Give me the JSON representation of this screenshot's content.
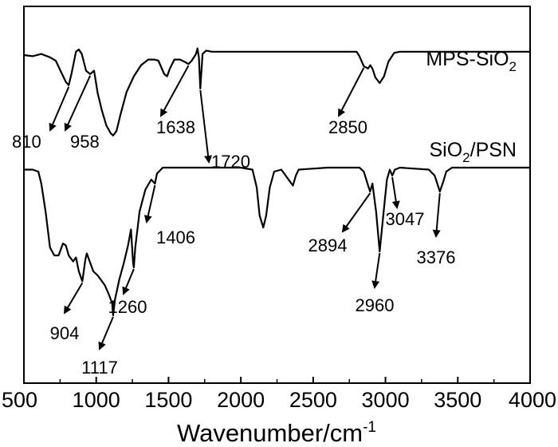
{
  "chart_data": {
    "type": "line",
    "xlabel": "Wavenumber/cm",
    "xlabel_sup": "-1",
    "xlim": [
      500,
      4000
    ],
    "xticks": [
      500,
      1000,
      1500,
      2000,
      2500,
      3000,
      3500,
      4000
    ],
    "y_axis_visible": false,
    "series": [
      {
        "name_parts": [
          "MPS-SiO",
          "2",
          ""
        ],
        "offset": 0,
        "points": [
          [
            500,
            0.9
          ],
          [
            560,
            0.89
          ],
          [
            620,
            0.91
          ],
          [
            680,
            0.88
          ],
          [
            720,
            0.85
          ],
          [
            760,
            0.74
          ],
          [
            790,
            0.66
          ],
          [
            810,
            0.63
          ],
          [
            830,
            0.74
          ],
          [
            860,
            0.93
          ],
          [
            880,
            0.95
          ],
          [
            900,
            0.91
          ],
          [
            930,
            0.76
          ],
          [
            958,
            0.73
          ],
          [
            985,
            0.76
          ],
          [
            1010,
            0.56
          ],
          [
            1040,
            0.4
          ],
          [
            1070,
            0.27
          ],
          [
            1100,
            0.2
          ],
          [
            1117,
            0.18
          ],
          [
            1140,
            0.22
          ],
          [
            1170,
            0.38
          ],
          [
            1210,
            0.57
          ],
          [
            1260,
            0.71
          ],
          [
            1310,
            0.81
          ],
          [
            1360,
            0.86
          ],
          [
            1400,
            0.86
          ],
          [
            1430,
            0.85
          ],
          [
            1470,
            0.73
          ],
          [
            1490,
            0.71
          ],
          [
            1510,
            0.78
          ],
          [
            1540,
            0.86
          ],
          [
            1580,
            0.86
          ],
          [
            1610,
            0.84
          ],
          [
            1638,
            0.82
          ],
          [
            1660,
            0.85
          ],
          [
            1690,
            0.91
          ],
          [
            1700,
            0.96
          ],
          [
            1710,
            0.88
          ],
          [
            1720,
            0.6
          ],
          [
            1735,
            0.91
          ],
          [
            1760,
            0.94
          ],
          [
            1800,
            0.93
          ],
          [
            2000,
            0.93
          ],
          [
            2200,
            0.93
          ],
          [
            2400,
            0.93
          ],
          [
            2600,
            0.93
          ],
          [
            2800,
            0.93
          ],
          [
            2820,
            0.89
          ],
          [
            2850,
            0.8
          ],
          [
            2880,
            0.78
          ],
          [
            2895,
            0.81
          ],
          [
            2910,
            0.78
          ],
          [
            2930,
            0.7
          ],
          [
            2960,
            0.65
          ],
          [
            2990,
            0.71
          ],
          [
            3020,
            0.84
          ],
          [
            3060,
            0.92
          ],
          [
            3100,
            0.93
          ],
          [
            3400,
            0.93
          ],
          [
            3700,
            0.93
          ],
          [
            4000,
            0.93
          ]
        ]
      },
      {
        "name_parts": [
          "SiO",
          "2",
          "/PSN"
        ],
        "offset": 0,
        "points": [
          [
            500,
            0.93
          ],
          [
            560,
            0.93
          ],
          [
            600,
            0.92
          ],
          [
            620,
            0.86
          ],
          [
            650,
            0.72
          ],
          [
            680,
            0.54
          ],
          [
            710,
            0.5
          ],
          [
            740,
            0.5
          ],
          [
            770,
            0.56
          ],
          [
            790,
            0.55
          ],
          [
            810,
            0.5
          ],
          [
            840,
            0.47
          ],
          [
            860,
            0.49
          ],
          [
            880,
            0.42
          ],
          [
            904,
            0.37
          ],
          [
            925,
            0.48
          ],
          [
            935,
            0.51
          ],
          [
            950,
            0.48
          ],
          [
            980,
            0.42
          ],
          [
            1010,
            0.4
          ],
          [
            1040,
            0.37
          ],
          [
            1060,
            0.35
          ],
          [
            1090,
            0.3
          ],
          [
            1110,
            0.26
          ],
          [
            1117,
            0.2
          ],
          [
            1130,
            0.28
          ],
          [
            1160,
            0.38
          ],
          [
            1190,
            0.46
          ],
          [
            1220,
            0.55
          ],
          [
            1240,
            0.63
          ],
          [
            1255,
            0.46
          ],
          [
            1260,
            0.44
          ],
          [
            1270,
            0.54
          ],
          [
            1300,
            0.72
          ],
          [
            1340,
            0.83
          ],
          [
            1380,
            0.88
          ],
          [
            1406,
            0.86
          ],
          [
            1420,
            0.91
          ],
          [
            1460,
            0.94
          ],
          [
            1600,
            0.94
          ],
          [
            1800,
            0.94
          ],
          [
            2000,
            0.94
          ],
          [
            2080,
            0.93
          ],
          [
            2110,
            0.84
          ],
          [
            2130,
            0.7
          ],
          [
            2155,
            0.64
          ],
          [
            2175,
            0.7
          ],
          [
            2200,
            0.84
          ],
          [
            2230,
            0.92
          ],
          [
            2280,
            0.93
          ],
          [
            2320,
            0.89
          ],
          [
            2360,
            0.85
          ],
          [
            2380,
            0.9
          ],
          [
            2400,
            0.93
          ],
          [
            2600,
            0.94
          ],
          [
            2820,
            0.94
          ],
          [
            2850,
            0.92
          ],
          [
            2880,
            0.85
          ],
          [
            2894,
            0.82
          ],
          [
            2910,
            0.86
          ],
          [
            2935,
            0.72
          ],
          [
            2960,
            0.52
          ],
          [
            2985,
            0.7
          ],
          [
            3010,
            0.88
          ],
          [
            3030,
            0.93
          ],
          [
            3047,
            0.9
          ],
          [
            3065,
            0.93
          ],
          [
            3100,
            0.94
          ],
          [
            3300,
            0.93
          ],
          [
            3340,
            0.9
          ],
          [
            3376,
            0.82
          ],
          [
            3400,
            0.87
          ],
          [
            3420,
            0.92
          ],
          [
            3460,
            0.94
          ],
          [
            3700,
            0.94
          ],
          [
            4000,
            0.94
          ]
        ]
      }
    ],
    "annotations": [
      {
        "label": "810",
        "series": 0,
        "x": 810
      },
      {
        "label": "958",
        "series": 0,
        "x": 958
      },
      {
        "label": "1638",
        "series": 0,
        "x": 1638
      },
      {
        "label": "1720",
        "series": 0,
        "x": 1720
      },
      {
        "label": "2850",
        "series": 0,
        "x": 2850
      },
      {
        "label": "904",
        "series": 1,
        "x": 904
      },
      {
        "label": "1117",
        "series": 1,
        "x": 1117
      },
      {
        "label": "1260",
        "series": 1,
        "x": 1260
      },
      {
        "label": "1406",
        "series": 1,
        "x": 1406
      },
      {
        "label": "2894",
        "series": 1,
        "x": 2894
      },
      {
        "label": "2960",
        "series": 1,
        "x": 2960
      },
      {
        "label": "3047",
        "series": 1,
        "x": 3047
      },
      {
        "label": "3376",
        "series": 1,
        "x": 3376
      }
    ]
  }
}
